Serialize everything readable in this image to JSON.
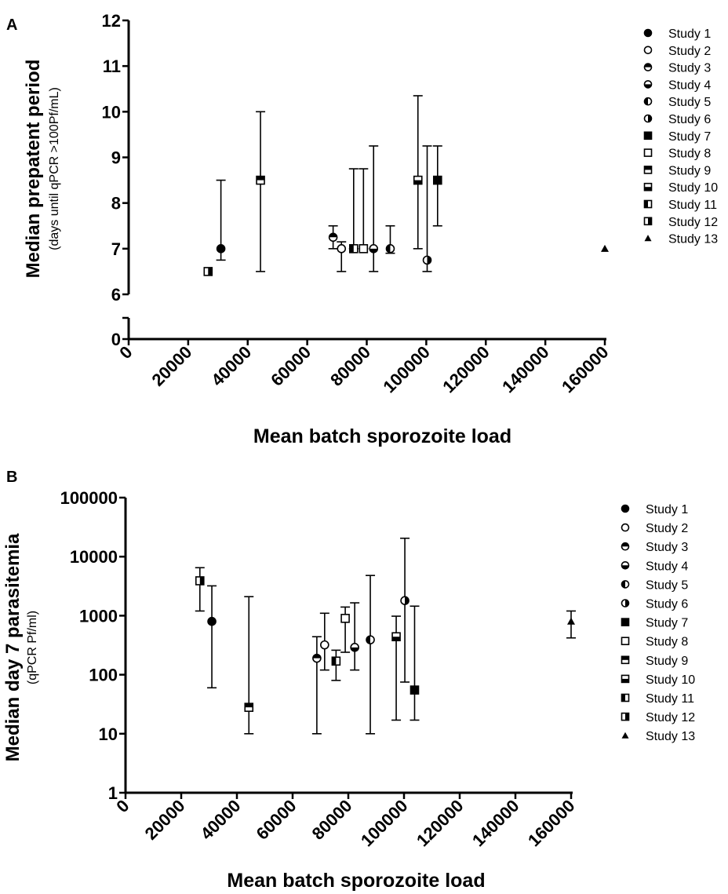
{
  "chart_data": [
    {
      "panel": "A",
      "type": "scatter",
      "ylabel": "Median prepatent period",
      "ylabel_sub": "(days until qPCR >100Pf/mL)",
      "xlabel": "Mean batch sporozoite load",
      "xlim": [
        0,
        160000
      ],
      "ylim": [
        0,
        12
      ],
      "y_scale": "linear",
      "y_axis_break": [
        0.4,
        6
      ],
      "xticks": [
        "0",
        "20000",
        "40000",
        "60000",
        "80000",
        "100000",
        "120000",
        "140000",
        "160000"
      ],
      "yticks": [
        "0",
        "6",
        "7",
        "8",
        "9",
        "10",
        "11",
        "12"
      ],
      "legend_position": "right",
      "grid": false,
      "series": [
        {
          "name": "Study 1",
          "x": 31000,
          "y": 7,
          "err": [
            6.75,
            8.5
          ]
        },
        {
          "name": "Study 2",
          "x": 71500,
          "y": 7,
          "err": [
            6.5,
            7.15
          ]
        },
        {
          "name": "Study 3",
          "x": 68700,
          "y": 7.25,
          "err": [
            7,
            7.5
          ]
        },
        {
          "name": "Study 4",
          "x": 82300,
          "y": 7,
          "err": [
            6.5,
            9.25
          ]
        },
        {
          "name": "Study 5",
          "x": 87900,
          "y": 7,
          "err": [
            6.9,
            7.5
          ]
        },
        {
          "name": "Study 6",
          "x": 100300,
          "y": 6.75,
          "err": [
            6.5,
            9.25
          ]
        },
        {
          "name": "Study 7",
          "x": 103800,
          "y": 8.5,
          "err": [
            7.5,
            9.25
          ]
        },
        {
          "name": "Study 8",
          "x": 78900,
          "y": 7,
          "err": [
            7,
            8.75
          ]
        },
        {
          "name": "Study 9",
          "x": 44300,
          "y": 8.5,
          "err": [
            6.5,
            10
          ]
        },
        {
          "name": "Study 10",
          "x": 97200,
          "y": 8.5,
          "err": [
            7,
            10.35
          ]
        },
        {
          "name": "Study 11",
          "x": 75600,
          "y": 7,
          "err": [
            7,
            8.75
          ]
        },
        {
          "name": "Study 12",
          "x": 26700,
          "y": 6.5,
          "err": null
        },
        {
          "name": "Study 13",
          "x": 160000,
          "y": 7,
          "err": null
        }
      ]
    },
    {
      "panel": "B",
      "type": "scatter",
      "ylabel": "Median day 7 parasitemia",
      "ylabel_sub": "(qPCR Pf/ml)",
      "xlabel": "Mean batch sporozoite load",
      "xlim": [
        0,
        160000
      ],
      "ylim": [
        1,
        100000
      ],
      "y_scale": "log",
      "xticks": [
        "0",
        "20000",
        "40000",
        "60000",
        "80000",
        "100000",
        "120000",
        "140000",
        "160000"
      ],
      "yticks": [
        "1",
        "10",
        "100",
        "1000",
        "10000",
        "100000"
      ],
      "legend_position": "right",
      "grid": false,
      "series": [
        {
          "name": "Study 1",
          "x": 31000,
          "y": 800,
          "err": [
            60,
            3200
          ]
        },
        {
          "name": "Study 2",
          "x": 71500,
          "y": 320,
          "err": [
            120,
            1100
          ]
        },
        {
          "name": "Study 3",
          "x": 68700,
          "y": 190,
          "err": [
            10,
            440
          ]
        },
        {
          "name": "Study 4",
          "x": 82300,
          "y": 290,
          "err": [
            120,
            1650
          ]
        },
        {
          "name": "Study 5",
          "x": 87900,
          "y": 390,
          "err": [
            10,
            4800
          ]
        },
        {
          "name": "Study 6",
          "x": 100300,
          "y": 1800,
          "err": [
            75,
            20500
          ]
        },
        {
          "name": "Study 7",
          "x": 103800,
          "y": 55,
          "err": [
            17,
            1450
          ]
        },
        {
          "name": "Study 8",
          "x": 78900,
          "y": 900,
          "err": [
            240,
            1400
          ]
        },
        {
          "name": "Study 9",
          "x": 44300,
          "y": 28,
          "err": [
            10,
            2100
          ]
        },
        {
          "name": "Study 10",
          "x": 97200,
          "y": 440,
          "err": [
            17,
            980
          ]
        },
        {
          "name": "Study 11",
          "x": 75600,
          "y": 170,
          "err": [
            80,
            260
          ]
        },
        {
          "name": "Study 12",
          "x": 26700,
          "y": 3900,
          "err": [
            1200,
            6500
          ]
        },
        {
          "name": "Study 13",
          "x": 160000,
          "y": 800,
          "err": [
            420,
            1200
          ]
        }
      ]
    }
  ],
  "marker_styles": [
    "filled-circle",
    "open-circle",
    "circle-top-half",
    "circle-bottom-half",
    "circle-left-half",
    "circle-right-half",
    "filled-square",
    "open-square",
    "square-top-half",
    "square-bottom-half",
    "square-left-half",
    "square-right-half",
    "filled-triangle"
  ],
  "colors": {
    "ink": "#000000",
    "background": "#ffffff"
  }
}
